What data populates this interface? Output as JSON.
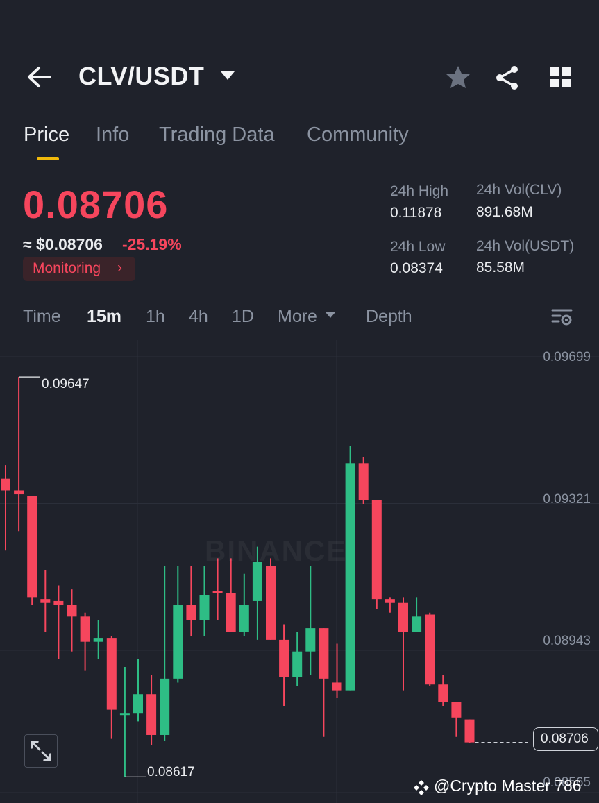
{
  "header": {
    "pair": "CLV/USDT",
    "icons": [
      "back-arrow-icon",
      "caret-down-icon",
      "star-icon",
      "share-icon",
      "grid-icon"
    ]
  },
  "tabs": [
    {
      "label": "Price",
      "active": true
    },
    {
      "label": "Info",
      "active": false
    },
    {
      "label": "Trading Data",
      "active": false
    },
    {
      "label": "Community",
      "active": false
    }
  ],
  "ticker": {
    "last_price": "0.08706",
    "approx_usd": "≈ $0.08706",
    "change_pct": "-25.19%",
    "monitoring_label": "Monitoring",
    "monitoring_chevron": "›"
  },
  "stats": {
    "high_label": "24h High",
    "high_value": "0.11878",
    "vol_base_label": "24h Vol(CLV)",
    "vol_base_value": "891.68M",
    "low_label": "24h Low",
    "low_value": "0.08374",
    "vol_quote_label": "24h Vol(USDT)",
    "vol_quote_value": "85.58M"
  },
  "intervals": {
    "time": "Time",
    "m15": "15m",
    "h1": "1h",
    "h4": "4h",
    "d1": "1D",
    "more": "More",
    "depth": "Depth",
    "active": "15m"
  },
  "chart_data": {
    "type": "candlestick",
    "y_ticks": [
      "0.09699",
      "0.09321",
      "0.08943"
    ],
    "y_tick_cut_off": "0.08565",
    "ylim": [
      0.0856,
      0.0972
    ],
    "grid": true,
    "max_marker": "0.09647",
    "min_marker": "0.08617",
    "current_price": "0.08706",
    "candles": [
      {
        "o": 0.09385,
        "h": 0.0942,
        "l": 0.092,
        "c": 0.09355
      },
      {
        "o": 0.09355,
        "h": 0.09647,
        "l": 0.0925,
        "c": 0.09345
      },
      {
        "o": 0.0934,
        "h": 0.0934,
        "l": 0.0906,
        "c": 0.0908
      },
      {
        "o": 0.09075,
        "h": 0.0915,
        "l": 0.0899,
        "c": 0.09065
      },
      {
        "o": 0.0907,
        "h": 0.0911,
        "l": 0.0892,
        "c": 0.0906
      },
      {
        "o": 0.0906,
        "h": 0.091,
        "l": 0.0894,
        "c": 0.0903
      },
      {
        "o": 0.0903,
        "h": 0.0904,
        "l": 0.0889,
        "c": 0.08965
      },
      {
        "o": 0.08965,
        "h": 0.0902,
        "l": 0.0892,
        "c": 0.08975
      },
      {
        "o": 0.08975,
        "h": 0.0898,
        "l": 0.08715,
        "c": 0.0879
      },
      {
        "o": 0.0878,
        "h": 0.089,
        "l": 0.08617,
        "c": 0.0878
      },
      {
        "o": 0.0878,
        "h": 0.0892,
        "l": 0.0876,
        "c": 0.0883
      },
      {
        "o": 0.0883,
        "h": 0.0888,
        "l": 0.087,
        "c": 0.08725
      },
      {
        "o": 0.08725,
        "h": 0.0916,
        "l": 0.0871,
        "c": 0.0887
      },
      {
        "o": 0.0887,
        "h": 0.0916,
        "l": 0.0886,
        "c": 0.0906
      },
      {
        "o": 0.0906,
        "h": 0.0916,
        "l": 0.0898,
        "c": 0.0902
      },
      {
        "o": 0.0902,
        "h": 0.0916,
        "l": 0.0898,
        "c": 0.09085
      },
      {
        "o": 0.09095,
        "h": 0.0918,
        "l": 0.0902,
        "c": 0.0909
      },
      {
        "o": 0.0909,
        "h": 0.0918,
        "l": 0.0899,
        "c": 0.0899
      },
      {
        "o": 0.0899,
        "h": 0.0914,
        "l": 0.0898,
        "c": 0.0906
      },
      {
        "o": 0.0907,
        "h": 0.0921,
        "l": 0.0897,
        "c": 0.0917
      },
      {
        "o": 0.0916,
        "h": 0.0918,
        "l": 0.0897,
        "c": 0.0897
      },
      {
        "o": 0.0897,
        "h": 0.0901,
        "l": 0.088,
        "c": 0.08875
      },
      {
        "o": 0.08875,
        "h": 0.0899,
        "l": 0.0885,
        "c": 0.0894
      },
      {
        "o": 0.0894,
        "h": 0.0916,
        "l": 0.0888,
        "c": 0.09
      },
      {
        "o": 0.09,
        "h": 0.09,
        "l": 0.0872,
        "c": 0.0887
      },
      {
        "o": 0.0886,
        "h": 0.0896,
        "l": 0.0882,
        "c": 0.0884
      },
      {
        "o": 0.0884,
        "h": 0.0947,
        "l": 0.0884,
        "c": 0.09425
      },
      {
        "o": 0.09425,
        "h": 0.0944,
        "l": 0.0932,
        "c": 0.0933
      },
      {
        "o": 0.0933,
        "h": 0.0933,
        "l": 0.0905,
        "c": 0.09075
      },
      {
        "o": 0.09075,
        "h": 0.0908,
        "l": 0.0904,
        "c": 0.09065
      },
      {
        "o": 0.09065,
        "h": 0.0908,
        "l": 0.0884,
        "c": 0.0899
      },
      {
        "o": 0.0899,
        "h": 0.0908,
        "l": 0.0899,
        "c": 0.0903
      },
      {
        "o": 0.09035,
        "h": 0.0904,
        "l": 0.0885,
        "c": 0.08855
      },
      {
        "o": 0.08855,
        "h": 0.0888,
        "l": 0.088,
        "c": 0.0881
      },
      {
        "o": 0.0881,
        "h": 0.0881,
        "l": 0.0872,
        "c": 0.0877
      },
      {
        "o": 0.08765,
        "h": 0.08765,
        "l": 0.08705,
        "c": 0.08706
      }
    ]
  },
  "watermark": "BINANCE",
  "credit": "@Crypto Master 786",
  "colors": {
    "up": "#2ebd85",
    "down": "#f6465d",
    "accent": "#f0b90b",
    "bg": "#1f222b"
  }
}
